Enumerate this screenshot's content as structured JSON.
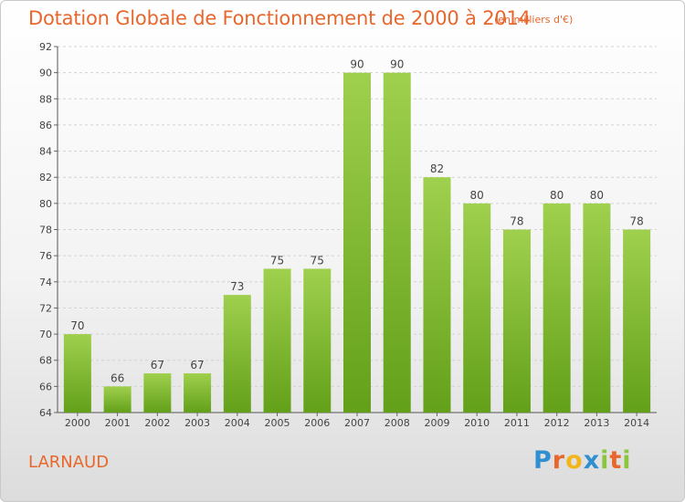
{
  "header": {
    "title": "Dotation Globale de Fonctionnement de 2000 à 2014",
    "unit": "(en milliers d'€)"
  },
  "commune": "LARNAUD",
  "logo": {
    "text": "Proxiti",
    "letters": [
      {
        "ch": "P",
        "color": "#2f8fd0"
      },
      {
        "ch": "r",
        "color": "#e8672d"
      },
      {
        "ch": "o",
        "color": "#f2b51c"
      },
      {
        "ch": "x",
        "color": "#2f8fd0"
      },
      {
        "ch": "i",
        "color": "#8cc63f"
      },
      {
        "ch": "t",
        "color": "#e8672d"
      },
      {
        "ch": "i",
        "color": "#8cc63f"
      }
    ]
  },
  "colors": {
    "accent": "#e8672d",
    "bar_top": "#9fd04e",
    "bar_bottom": "#63a019"
  },
  "chart_data": {
    "type": "bar",
    "title": "Dotation Globale de Fonctionnement de 2000 à 2014",
    "subtitle": "(en milliers d'€)",
    "categories": [
      "2000",
      "2001",
      "2002",
      "2003",
      "2004",
      "2005",
      "2006",
      "2007",
      "2008",
      "2009",
      "2010",
      "2011",
      "2012",
      "2013",
      "2014"
    ],
    "values": [
      70,
      66,
      67,
      67,
      73,
      75,
      75,
      90,
      90,
      82,
      80,
      78,
      80,
      80,
      78
    ],
    "ylim": [
      64,
      92
    ],
    "yticks": [
      64,
      66,
      68,
      70,
      72,
      74,
      76,
      78,
      80,
      82,
      84,
      86,
      88,
      90,
      92
    ],
    "grid": true,
    "xlabel": "",
    "ylabel": ""
  }
}
